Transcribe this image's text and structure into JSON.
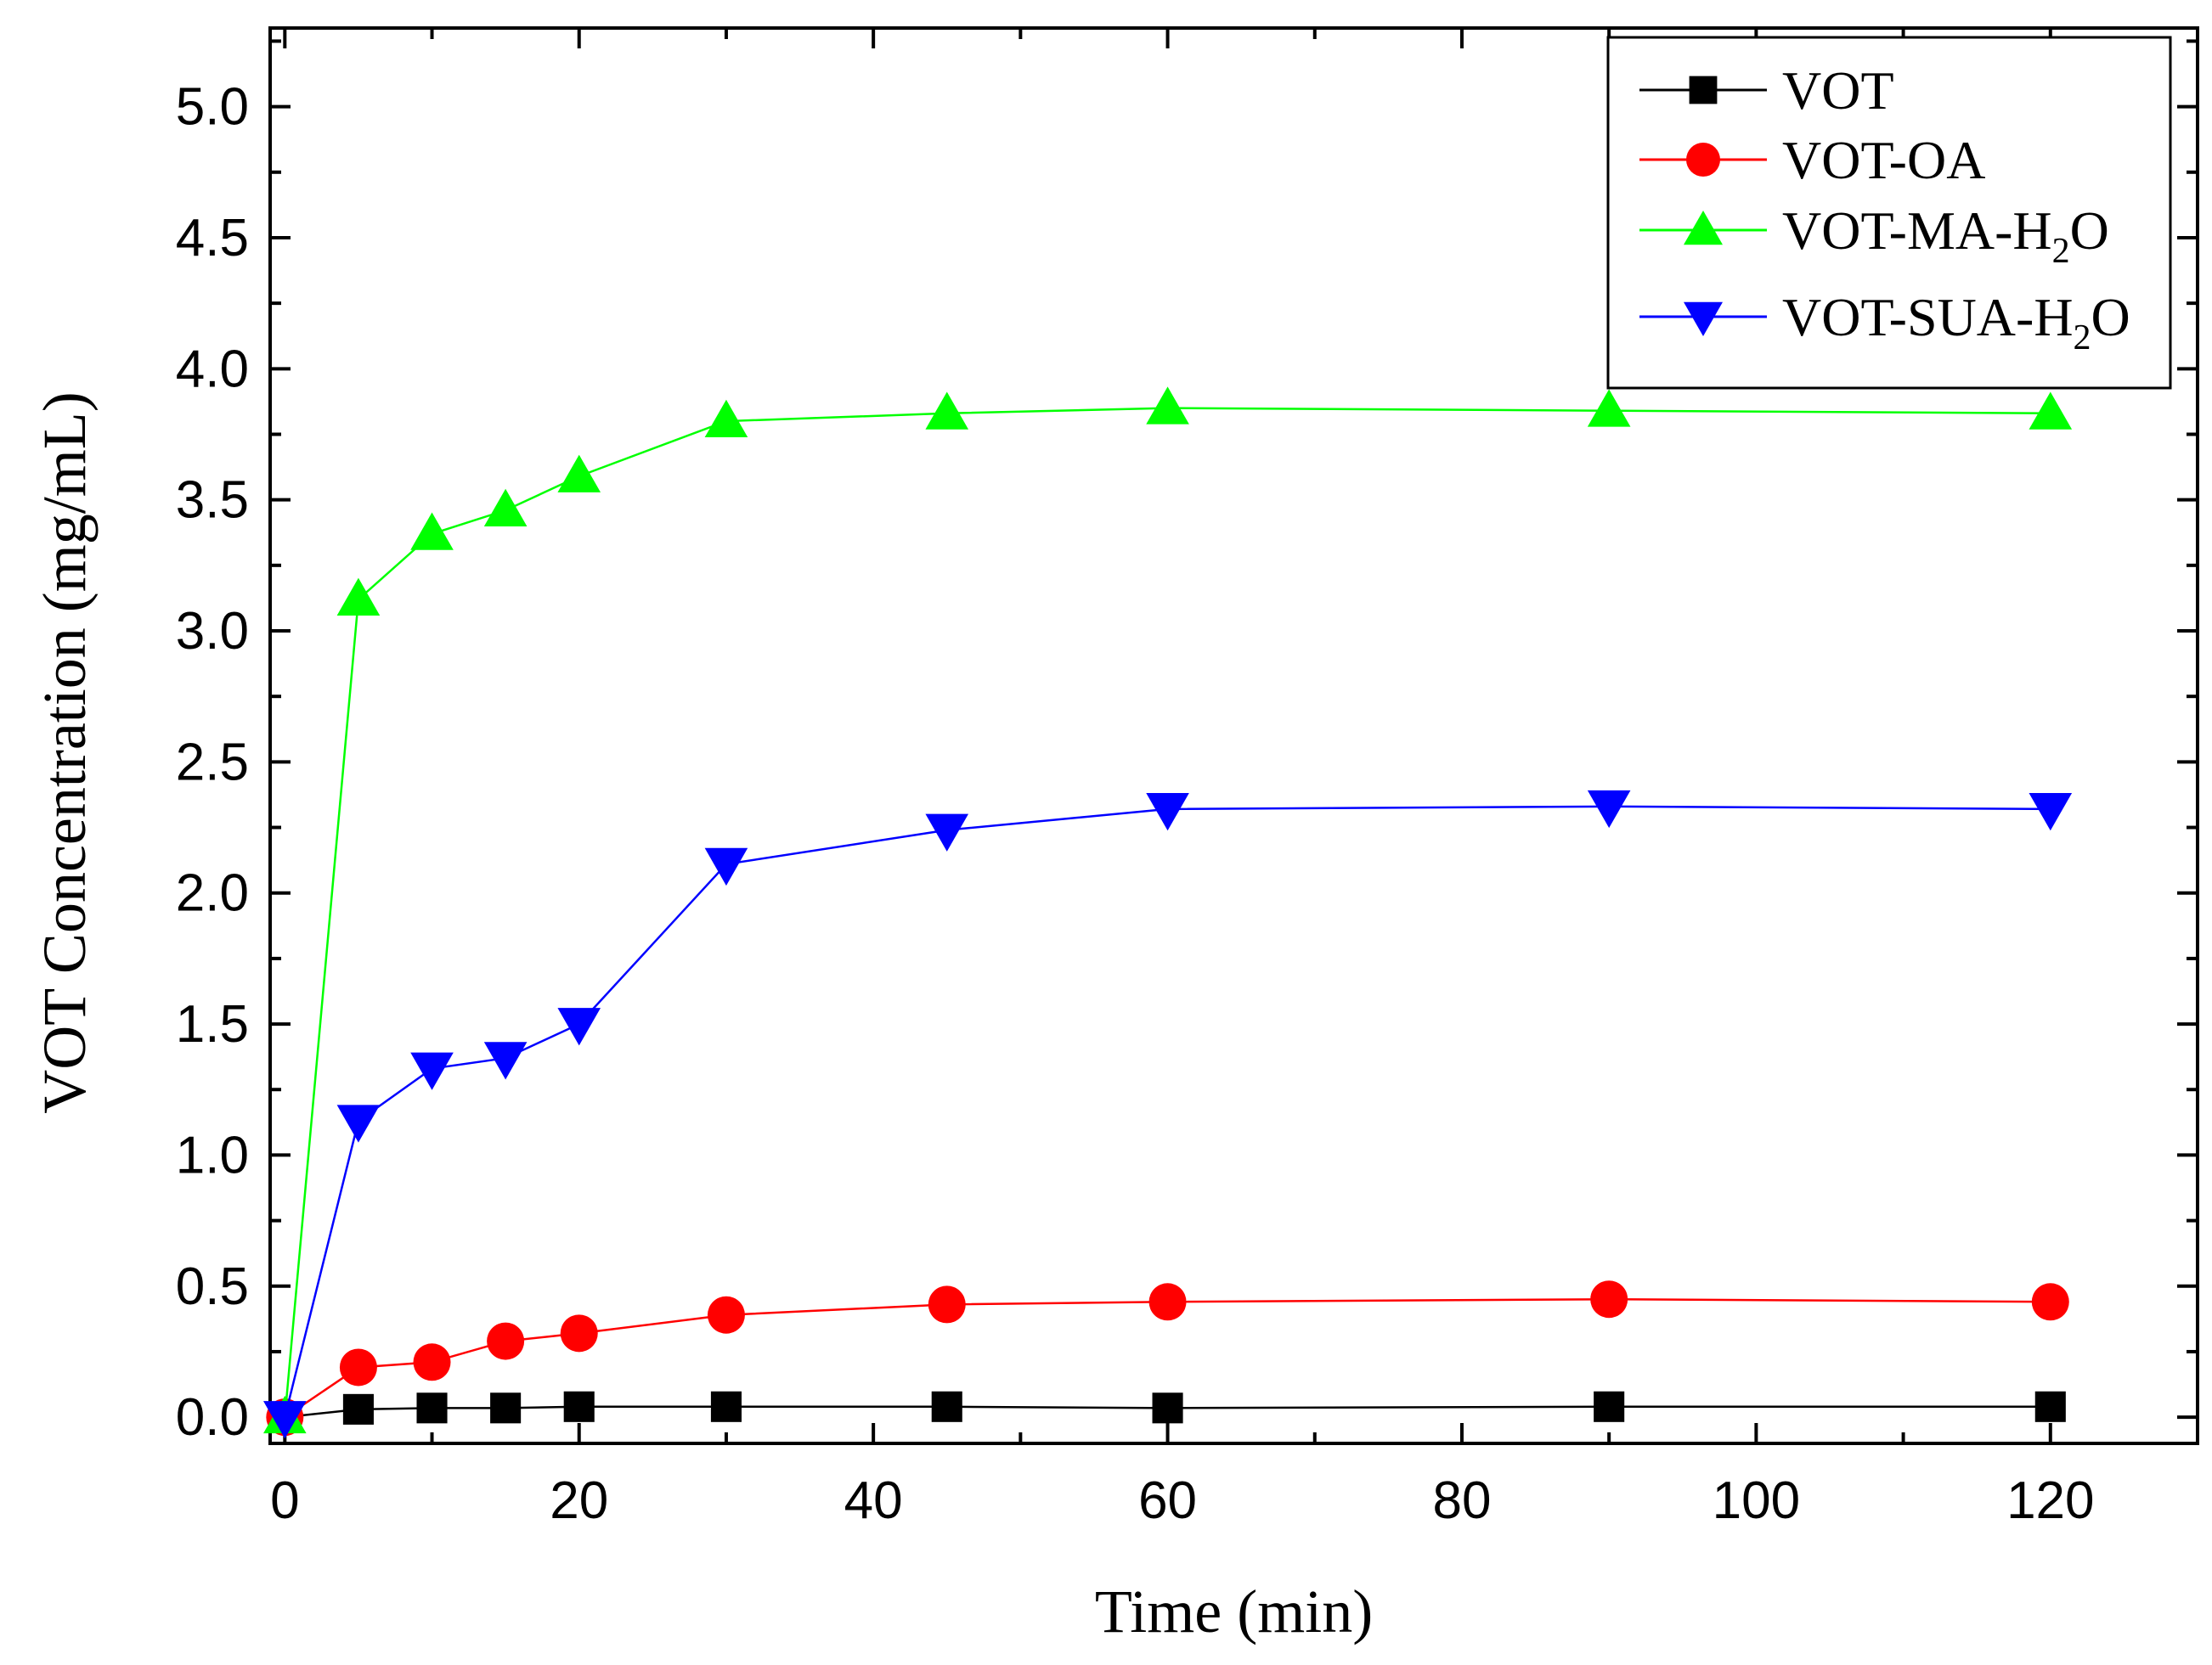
{
  "chart_data": {
    "type": "line",
    "title": "",
    "xlabel": "Time (min)",
    "ylabel": "VOT Concentration (mg/mL)",
    "xlim": [
      -1,
      130
    ],
    "ylim": [
      -0.1,
      5.3
    ],
    "xticks": [
      0,
      20,
      40,
      60,
      80,
      100,
      120
    ],
    "xtick_labels": [
      "0",
      "20",
      "40",
      "60",
      "80",
      "100",
      "120"
    ],
    "yticks": [
      0.0,
      0.5,
      1.0,
      1.5,
      2.0,
      2.5,
      3.0,
      3.5,
      4.0,
      4.5,
      5.0
    ],
    "ytick_labels": [
      "0.0",
      "0.5",
      "1.0",
      "1.5",
      "2.0",
      "2.5",
      "3.0",
      "3.5",
      "4.0",
      "4.5",
      "5.0"
    ],
    "grid": false,
    "legend_position": "top-right",
    "x": [
      0,
      5,
      10,
      15,
      20,
      30,
      45,
      60,
      90,
      120
    ],
    "series": [
      {
        "name": "VOT",
        "legend_main": "VOT",
        "legend_sub": "",
        "legend_tail": "",
        "color": "#000000",
        "marker": "square",
        "values": [
          0.0,
          0.03,
          0.035,
          0.035,
          0.04,
          0.04,
          0.04,
          0.035,
          0.04,
          0.04
        ]
      },
      {
        "name": "VOT-OA",
        "legend_main": "VOT-OA",
        "legend_sub": "",
        "legend_tail": "",
        "color": "#ff0000",
        "marker": "circle",
        "values": [
          0.0,
          0.19,
          0.21,
          0.29,
          0.32,
          0.39,
          0.43,
          0.44,
          0.45,
          0.44
        ]
      },
      {
        "name": "VOT-MA-H2O",
        "legend_main": "VOT-MA-H",
        "legend_sub": "2",
        "legend_tail": "O",
        "color": "#00ff00",
        "marker": "triangle-up",
        "values": [
          0.0,
          3.12,
          3.37,
          3.46,
          3.59,
          3.8,
          3.83,
          3.85,
          3.84,
          3.83
        ]
      },
      {
        "name": "VOT-SUA-H2O",
        "legend_main": "VOT-SUA-H",
        "legend_sub": "2",
        "legend_tail": "O",
        "color": "#0000ff",
        "marker": "triangle-down",
        "values": [
          0.0,
          1.13,
          1.33,
          1.37,
          1.5,
          2.11,
          2.24,
          2.32,
          2.33,
          2.32
        ]
      }
    ]
  }
}
